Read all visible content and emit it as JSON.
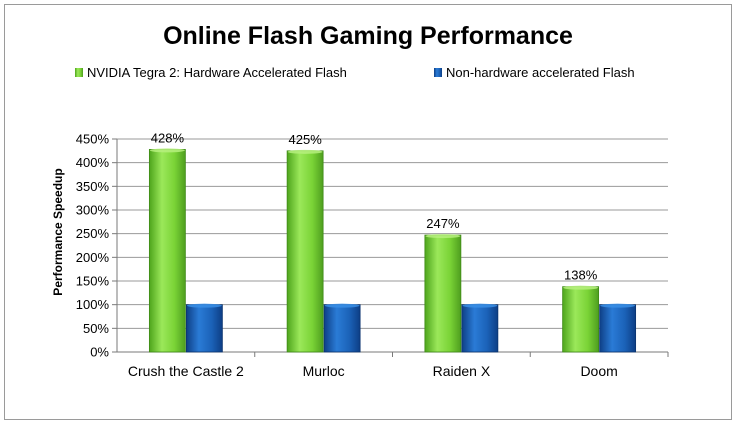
{
  "chart_data": {
    "type": "bar",
    "title": "Online Flash Gaming Performance",
    "xlabel": "",
    "ylabel": "Performance Speedup",
    "categories": [
      "Crush the Castle 2",
      "Murloc",
      "Raiden X",
      "Doom"
    ],
    "series": [
      {
        "name": "NVIDIA Tegra 2: Hardware Accelerated Flash",
        "values": [
          428,
          425,
          247,
          138
        ],
        "color": "#7ed43a",
        "data_labels": [
          "428%",
          "425%",
          "247%",
          "138%"
        ]
      },
      {
        "name": "Non-hardware accelerated Flash",
        "values": [
          100,
          100,
          100,
          100
        ],
        "color": "#1a5fb4"
      }
    ],
    "ylim": [
      0,
      450
    ],
    "yticks": [
      0,
      50,
      100,
      150,
      200,
      250,
      300,
      350,
      400,
      450
    ],
    "ytick_labels": [
      "0%",
      "50%",
      "100%",
      "150%",
      "200%",
      "250%",
      "300%",
      "350%",
      "400%",
      "450%"
    ],
    "grid": true,
    "legend_position": "top"
  }
}
